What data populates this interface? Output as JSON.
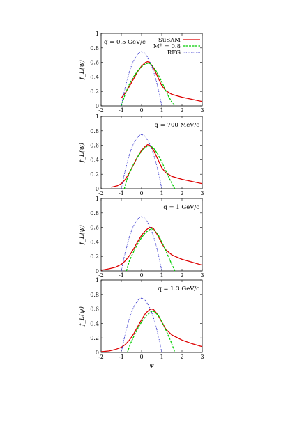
{
  "chart_data": [
    {
      "type": "line",
      "annotation": "q = 0.5 GeV/c",
      "xlabel": "",
      "ylabel": "f_L(ψ)",
      "xlim": [
        -2,
        3
      ],
      "ylim": [
        0,
        1
      ],
      "xticks": [
        "-2",
        "-1",
        "0",
        "1",
        "2",
        "3"
      ],
      "yticks": [
        "0",
        "0.2",
        "0.4",
        "0.6",
        "0.8",
        "1"
      ],
      "legend": {
        "position": "top-right",
        "entries": [
          "SuSAM",
          "M* = 0.8",
          "RFG"
        ]
      },
      "series": [
        {
          "name": "SuSAM",
          "color": "#dd0000",
          "style": "solid",
          "x": [
            -1.0,
            -0.8,
            -0.6,
            -0.4,
            -0.2,
            0.0,
            0.2,
            0.3,
            0.4,
            0.6,
            0.8,
            1.0,
            1.2,
            1.5,
            2.0,
            2.5,
            3.0
          ],
          "y": [
            0.11,
            0.18,
            0.27,
            0.37,
            0.47,
            0.55,
            0.6,
            0.61,
            0.6,
            0.52,
            0.4,
            0.28,
            0.21,
            0.16,
            0.12,
            0.09,
            0.06
          ]
        },
        {
          "name": "M* = 0.8",
          "color": "#00cc00",
          "style": "dashed",
          "x": [
            -1.0,
            -0.8,
            -0.6,
            -0.4,
            -0.2,
            0.0,
            0.2,
            0.35,
            0.5,
            0.7,
            0.9,
            1.1,
            1.3,
            1.5,
            1.65
          ],
          "y": [
            0.0,
            0.17,
            0.3,
            0.4,
            0.48,
            0.54,
            0.58,
            0.59,
            0.57,
            0.49,
            0.39,
            0.27,
            0.15,
            0.05,
            0.0
          ]
        },
        {
          "name": "RFG",
          "color": "#3333cc",
          "style": "dotted",
          "x": [
            -1.0,
            -0.9,
            -0.75,
            -0.6,
            -0.45,
            -0.3,
            -0.15,
            0.0,
            0.15,
            0.3,
            0.45,
            0.6,
            0.75,
            0.9,
            1.0
          ],
          "y": [
            0.0,
            0.14,
            0.32,
            0.47,
            0.59,
            0.67,
            0.73,
            0.75,
            0.73,
            0.67,
            0.59,
            0.47,
            0.32,
            0.14,
            0.0
          ]
        }
      ]
    },
    {
      "type": "line",
      "annotation": "q = 700 MeV/c",
      "xlabel": "",
      "ylabel": "f_L(ψ)",
      "xlim": [
        -2,
        3
      ],
      "ylim": [
        0,
        1
      ],
      "xticks": [
        "-2",
        "-1",
        "0",
        "1",
        "2",
        "3"
      ],
      "yticks": [
        "0",
        "0.2",
        "0.4",
        "0.6",
        "0.8",
        "1"
      ],
      "series": [
        {
          "name": "SuSAM",
          "color": "#dd0000",
          "style": "solid",
          "x": [
            -1.5,
            -1.2,
            -1.0,
            -0.8,
            -0.6,
            -0.4,
            -0.2,
            0.0,
            0.2,
            0.3,
            0.4,
            0.6,
            0.8,
            1.0,
            1.2,
            1.5,
            2.0,
            2.5,
            3.0
          ],
          "y": [
            0.02,
            0.04,
            0.07,
            0.13,
            0.22,
            0.33,
            0.44,
            0.53,
            0.59,
            0.61,
            0.6,
            0.53,
            0.41,
            0.29,
            0.22,
            0.17,
            0.13,
            0.1,
            0.07
          ]
        },
        {
          "name": "M* = 0.8",
          "color": "#00cc00",
          "style": "dashed",
          "x": [
            -0.85,
            -0.7,
            -0.5,
            -0.3,
            -0.1,
            0.1,
            0.3,
            0.45,
            0.6,
            0.8,
            1.0,
            1.2,
            1.4,
            1.6,
            1.65
          ],
          "y": [
            0.0,
            0.15,
            0.28,
            0.39,
            0.48,
            0.55,
            0.59,
            0.59,
            0.56,
            0.48,
            0.37,
            0.25,
            0.13,
            0.02,
            0.0
          ]
        },
        {
          "name": "RFG",
          "color": "#3333cc",
          "style": "dotted",
          "x": [
            -1.0,
            -0.9,
            -0.75,
            -0.6,
            -0.45,
            -0.3,
            -0.15,
            0.0,
            0.15,
            0.3,
            0.45,
            0.6,
            0.75,
            0.9,
            1.0
          ],
          "y": [
            0.0,
            0.14,
            0.32,
            0.47,
            0.59,
            0.67,
            0.73,
            0.75,
            0.73,
            0.67,
            0.59,
            0.47,
            0.32,
            0.14,
            0.0
          ]
        }
      ]
    },
    {
      "type": "line",
      "annotation": "q = 1 GeV/c",
      "xlabel": "",
      "ylabel": "f_L(ψ)",
      "xlim": [
        -2,
        3
      ],
      "ylim": [
        0,
        1
      ],
      "xticks": [
        "-2",
        "-1",
        "0",
        "1",
        "2",
        "3"
      ],
      "yticks": [
        "0",
        "0.2",
        "0.4",
        "0.6",
        "0.8",
        "1"
      ],
      "series": [
        {
          "name": "SuSAM",
          "color": "#dd0000",
          "style": "solid",
          "x": [
            -2.0,
            -1.6,
            -1.3,
            -1.0,
            -0.8,
            -0.6,
            -0.4,
            -0.2,
            0.0,
            0.2,
            0.4,
            0.5,
            0.6,
            0.8,
            1.0,
            1.2,
            1.5,
            2.0,
            2.5,
            3.0
          ],
          "y": [
            0.01,
            0.03,
            0.05,
            0.09,
            0.14,
            0.21,
            0.3,
            0.4,
            0.49,
            0.56,
            0.6,
            0.6,
            0.58,
            0.49,
            0.38,
            0.29,
            0.22,
            0.16,
            0.12,
            0.08
          ]
        },
        {
          "name": "M* = 0.8",
          "color": "#00cc00",
          "style": "dashed",
          "x": [
            -0.75,
            -0.6,
            -0.4,
            -0.2,
            0.0,
            0.2,
            0.4,
            0.5,
            0.6,
            0.8,
            1.0,
            1.2,
            1.4,
            1.6,
            1.65
          ],
          "y": [
            0.0,
            0.14,
            0.26,
            0.37,
            0.46,
            0.53,
            0.57,
            0.58,
            0.57,
            0.51,
            0.4,
            0.28,
            0.15,
            0.03,
            0.0
          ]
        },
        {
          "name": "RFG",
          "color": "#3333cc",
          "style": "dotted",
          "x": [
            -1.0,
            -0.9,
            -0.75,
            -0.6,
            -0.45,
            -0.3,
            -0.15,
            0.0,
            0.15,
            0.3,
            0.45,
            0.6,
            0.75,
            0.9,
            1.0
          ],
          "y": [
            0.0,
            0.14,
            0.32,
            0.47,
            0.59,
            0.67,
            0.73,
            0.75,
            0.73,
            0.67,
            0.59,
            0.47,
            0.32,
            0.14,
            0.0
          ]
        }
      ]
    },
    {
      "type": "line",
      "annotation": "q = 1.3 GeV/c",
      "xlabel": "ψ",
      "ylabel": "f_L(ψ)",
      "xlim": [
        -2,
        3
      ],
      "ylim": [
        0,
        1
      ],
      "xticks": [
        "-2",
        "-1",
        "0",
        "1",
        "2",
        "3"
      ],
      "yticks": [
        "0",
        "0.2",
        "0.4",
        "0.6",
        "0.8",
        "1"
      ],
      "series": [
        {
          "name": "SuSAM",
          "color": "#dd0000",
          "style": "solid",
          "x": [
            -2.0,
            -1.6,
            -1.3,
            -1.0,
            -0.8,
            -0.6,
            -0.4,
            -0.2,
            0.0,
            0.2,
            0.4,
            0.5,
            0.6,
            0.8,
            1.0,
            1.2,
            1.5,
            2.0,
            2.5,
            3.0
          ],
          "y": [
            0.01,
            0.02,
            0.04,
            0.07,
            0.11,
            0.17,
            0.25,
            0.35,
            0.45,
            0.54,
            0.59,
            0.6,
            0.59,
            0.52,
            0.42,
            0.32,
            0.24,
            0.17,
            0.12,
            0.08
          ]
        },
        {
          "name": "M* = 0.8",
          "color": "#00cc00",
          "style": "dashed",
          "x": [
            -0.7,
            -0.55,
            -0.35,
            -0.15,
            0.05,
            0.25,
            0.45,
            0.55,
            0.65,
            0.85,
            1.05,
            1.25,
            1.45,
            1.6,
            1.65
          ],
          "y": [
            0.0,
            0.12,
            0.24,
            0.35,
            0.44,
            0.51,
            0.56,
            0.57,
            0.56,
            0.5,
            0.4,
            0.28,
            0.15,
            0.04,
            0.0
          ]
        },
        {
          "name": "RFG",
          "color": "#3333cc",
          "style": "dotted",
          "x": [
            -1.0,
            -0.9,
            -0.75,
            -0.6,
            -0.45,
            -0.3,
            -0.15,
            0.0,
            0.15,
            0.3,
            0.45,
            0.6,
            0.75,
            0.9,
            1.0
          ],
          "y": [
            0.0,
            0.14,
            0.32,
            0.47,
            0.59,
            0.67,
            0.73,
            0.75,
            0.73,
            0.67,
            0.59,
            0.47,
            0.32,
            0.14,
            0.0
          ]
        }
      ]
    }
  ]
}
